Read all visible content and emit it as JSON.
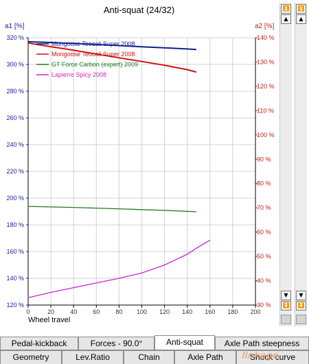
{
  "window": {
    "title": "Anti-squat (24/32)"
  },
  "axes": {
    "left_unit": "a1 [%]",
    "right_unit": "a2 [%]",
    "x_label": "Wheel travel"
  },
  "scroll_buttons": [
    "⏫",
    "⏫",
    "▲",
    "▲",
    "▼",
    "▼",
    "⏬",
    "⏬"
  ],
  "tabs_row1": [
    {
      "label": "Pedal-kickback",
      "active": false
    },
    {
      "label": "Forces - 90.0°",
      "active": false
    },
    {
      "label": "Anti-squat",
      "active": true
    },
    {
      "label": "Axle Path steepness",
      "active": false
    }
  ],
  "tabs_row2": [
    {
      "label": "Geometry"
    },
    {
      "label": "Lev.Ratio"
    },
    {
      "label": "Chain"
    },
    {
      "label": "Axle Path"
    },
    {
      "label": "Shock curve"
    }
  ],
  "watermark": "linkage",
  "chart_data": {
    "type": "line",
    "xlim": [
      0,
      200
    ],
    "x_ticks": [
      0,
      20,
      40,
      60,
      80,
      100,
      120,
      140,
      160,
      180,
      200
    ],
    "ylim_left": [
      120,
      320
    ],
    "y_left_ticks": [
      "120 %",
      "140 %",
      "160 %",
      "180 %",
      "200 %",
      "220 %",
      "240 %",
      "260 %",
      "280 %",
      "300 %",
      "320 %"
    ],
    "ylim_right": [
      30,
      140
    ],
    "y_right_ticks": [
      "30 %",
      "40 %",
      "50 %",
      "60 %",
      "70 %",
      "80 %",
      "90 %",
      "100 %",
      "110 %",
      "120 %",
      "130 %",
      "140 %"
    ],
    "grid": true,
    "legend_position": "top-left",
    "series": [
      {
        "name": "Mongoose Teocali Super 2008",
        "color": "#0d1f8f",
        "axis": "left",
        "x": [
          0,
          20,
          40,
          60,
          80,
          100,
          120,
          140,
          148
        ],
        "y": [
          317,
          316.4,
          315.7,
          314.9,
          314.1,
          313.2,
          312.4,
          311.6,
          311.2
        ]
      },
      {
        "name": "Mongoose Teocali Super 2008",
        "color": "#cc1111",
        "axis": "left",
        "x": [
          0,
          20,
          40,
          60,
          80,
          100,
          120,
          140,
          148
        ],
        "y": [
          316,
          313.3,
          310.6,
          307.8,
          305,
          302.2,
          299.4,
          296.1,
          294.3
        ]
      },
      {
        "name": "GT Force Carbon (expert) 2009",
        "color": "#1e7a1e",
        "axis": "left",
        "x": [
          0,
          20,
          40,
          60,
          80,
          100,
          120,
          140,
          148
        ],
        "y": [
          193.8,
          193.4,
          193,
          192.5,
          192,
          191.4,
          190.8,
          190.1,
          189.8
        ]
      },
      {
        "name": "Lapierre Spicy 2008",
        "color": "#cc22cc",
        "axis": "left",
        "x": [
          0,
          20,
          40,
          60,
          80,
          100,
          120,
          140,
          148,
          160
        ],
        "y": [
          125.5,
          129.5,
          133,
          136.5,
          140,
          144,
          150,
          158,
          162.5,
          168.5
        ]
      }
    ]
  }
}
